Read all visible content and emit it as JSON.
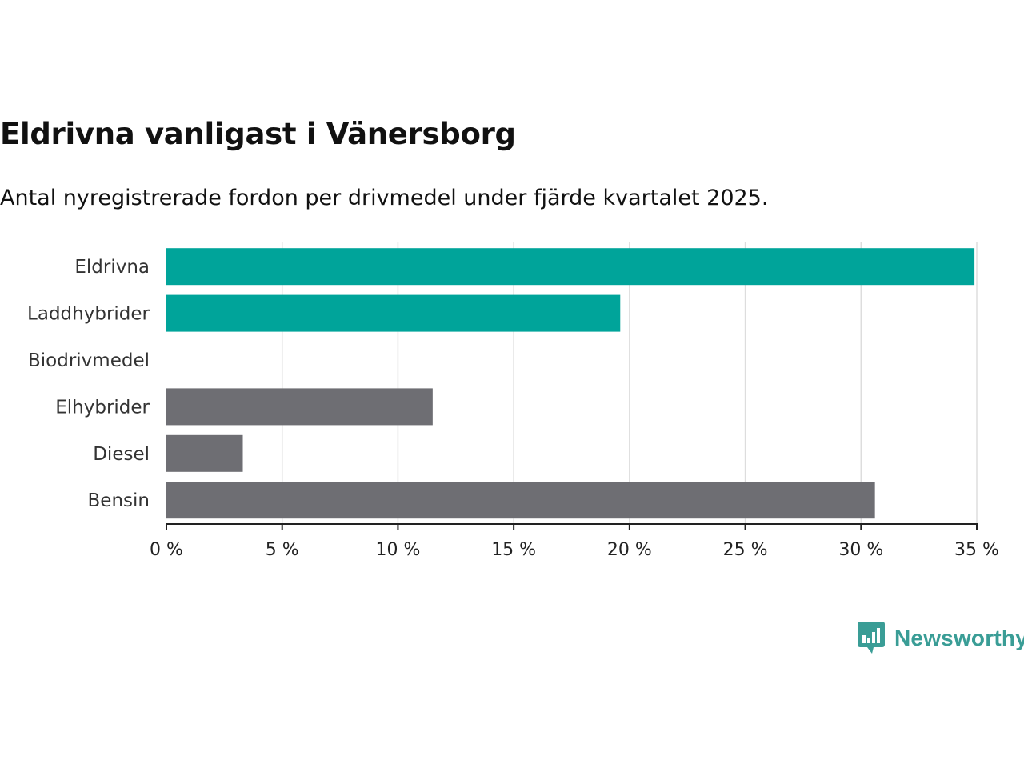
{
  "chart_data": {
    "type": "bar",
    "orientation": "horizontal",
    "title": "Eldrivna vanligast i Vänersborg",
    "subtitle": "Antal nyregistrerade fordon per drivmedel under fjärde kvartalet 2025.",
    "categories": [
      "Eldrivna",
      "Laddhybrider",
      "Biodrivmedel",
      "Elhybrider",
      "Diesel",
      "Bensin"
    ],
    "values": [
      34.9,
      19.6,
      0,
      11.5,
      3.3,
      30.6
    ],
    "bar_colors": [
      "#00a49a",
      "#00a49a",
      "#00a49a",
      "#6e6e73",
      "#6e6e73",
      "#6e6e73"
    ],
    "xlim": [
      0,
      35
    ],
    "xticks": [
      0,
      5,
      10,
      15,
      20,
      25,
      30,
      35
    ],
    "xtick_labels": [
      "0 %",
      "5 %",
      "10 %",
      "15 %",
      "20 %",
      "25 %",
      "30 %",
      "35 %"
    ],
    "xlabel": "",
    "ylabel": "",
    "grid": true,
    "gridline_color": "#dddddd",
    "axis_color": "#222222"
  },
  "brand": {
    "name": "Newsworthy",
    "icon": "newsworthy-logo-icon",
    "color": "#3a9d96"
  }
}
